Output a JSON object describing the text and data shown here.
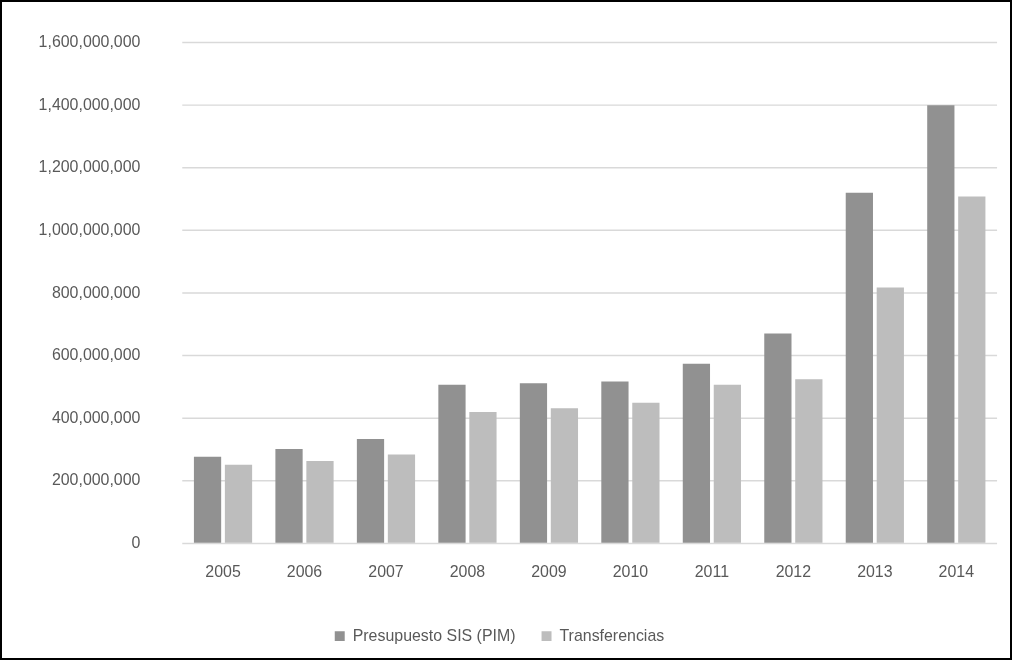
{
  "chart_data": {
    "type": "bar",
    "categories": [
      "2005",
      "2006",
      "2007",
      "2008",
      "2009",
      "2010",
      "2011",
      "2012",
      "2013",
      "2014"
    ],
    "series": [
      {
        "name": "Presupuesto SIS (PIM)",
        "color": "#919191",
        "values": [
          277000000,
          302000000,
          334000000,
          507000000,
          512000000,
          518000000,
          574000000,
          671000000,
          1121000000,
          1400000000
        ]
      },
      {
        "name": "Transferencias",
        "color": "#bdbdbd",
        "values": [
          252000000,
          264000000,
          284000000,
          420000000,
          432000000,
          450000000,
          507000000,
          525000000,
          818000000,
          1109000000
        ]
      }
    ],
    "ylim": [
      0,
      1600000000
    ],
    "yticks": [
      {
        "value": 0,
        "label": "0"
      },
      {
        "value": 200000000,
        "label": "200,000,000"
      },
      {
        "value": 400000000,
        "label": "400,000,000"
      },
      {
        "value": 600000000,
        "label": "600,000,000"
      },
      {
        "value": 800000000,
        "label": "800,000,000"
      },
      {
        "value": 1000000000,
        "label": "1,000,000,000"
      },
      {
        "value": 1200000000,
        "label": "1,200,000,000"
      },
      {
        "value": 1400000000,
        "label": "1,400,000,000"
      },
      {
        "value": 1600000000,
        "label": "1,600,000,000"
      }
    ],
    "grid": "y",
    "legend": "bottom"
  }
}
